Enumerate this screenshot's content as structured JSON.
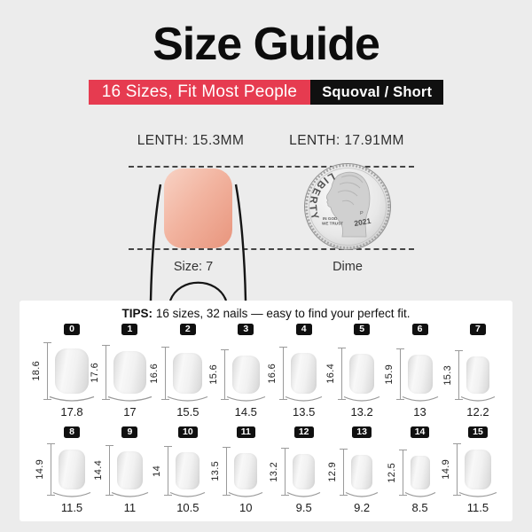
{
  "header": {
    "title": "Size Guide",
    "banner_left": "16 Sizes, Fit Most People",
    "banner_right": "Squoval / Short",
    "accent_color": "#e63b50"
  },
  "comparison": {
    "nail_length_label": "LENTH: 15.3MM",
    "dime_length_label": "LENTH: 17.91MM",
    "nail_caption": "Size: 7",
    "dime_caption": "Dime",
    "nail_color": "#f0a892",
    "coin": {
      "liberty": "LIBERTY",
      "motto_line1": "IN GOD",
      "motto_line2": "WE TRUST",
      "year": "2021",
      "mint_mark": "P"
    }
  },
  "tips": {
    "prefix": "TIPS:",
    "text": " 16 sizes, 32 nails — easy to find your perfect fit."
  },
  "sizes": [
    {
      "num": "0",
      "length": "18.6",
      "width": "17.8"
    },
    {
      "num": "1",
      "length": "17.6",
      "width": "17"
    },
    {
      "num": "2",
      "length": "16.6",
      "width": "15.5"
    },
    {
      "num": "3",
      "length": "15.6",
      "width": "14.5"
    },
    {
      "num": "4",
      "length": "16.6",
      "width": "13.5"
    },
    {
      "num": "5",
      "length": "16.4",
      "width": "13.2"
    },
    {
      "num": "6",
      "length": "15.9",
      "width": "13"
    },
    {
      "num": "7",
      "length": "15.3",
      "width": "12.2"
    },
    {
      "num": "8",
      "length": "14.9",
      "width": "11.5"
    },
    {
      "num": "9",
      "length": "14.4",
      "width": "11"
    },
    {
      "num": "10",
      "length": "14",
      "width": "10.5"
    },
    {
      "num": "11",
      "length": "13.5",
      "width": "10"
    },
    {
      "num": "12",
      "length": "13.2",
      "width": "9.5"
    },
    {
      "num": "13",
      "length": "12.9",
      "width": "9.2"
    },
    {
      "num": "14",
      "length": "12.5",
      "width": "8.5"
    },
    {
      "num": "15",
      "length": "14.9",
      "width": "11.5"
    }
  ]
}
